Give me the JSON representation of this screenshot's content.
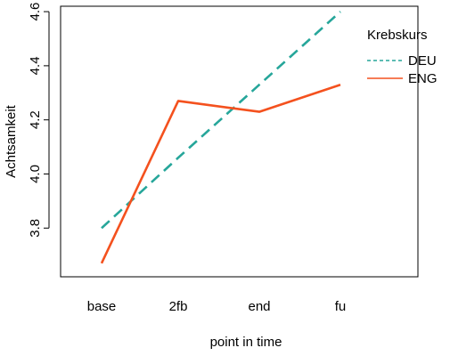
{
  "chart_data": {
    "type": "line",
    "categories": [
      "base",
      "2fb",
      "end",
      "fu"
    ],
    "xlabel": "point in time",
    "ylabel": "Achtsamkeit",
    "ylim": [
      3.62,
      4.62
    ],
    "yticks": [
      "3.8",
      "4.0",
      "4.2",
      "4.4",
      "4.6"
    ],
    "grid": false,
    "legend": {
      "title": "Krebskurs",
      "placement": "top-right",
      "entries": [
        "DEU",
        "ENG"
      ]
    },
    "series": [
      {
        "name": "DEU",
        "color": "#26A69A",
        "style": "dashed",
        "values": [
          3.8,
          4.06,
          4.33,
          4.6
        ]
      },
      {
        "name": "ENG",
        "color": "#F4511E",
        "style": "solid",
        "values": [
          3.67,
          4.27,
          4.23,
          4.33
        ]
      }
    ]
  }
}
